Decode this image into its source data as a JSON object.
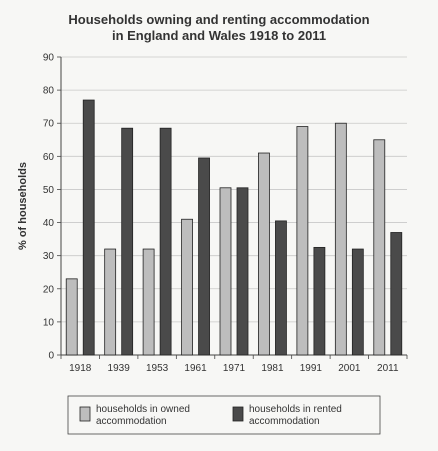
{
  "chart_data": {
    "type": "bar",
    "title_lines": [
      "Households owning and renting accommodation",
      "in England and Wales 1918 to 2011"
    ],
    "xlabel": "",
    "ylabel": "% of households",
    "ylim": [
      0,
      90
    ],
    "yticks": [
      0,
      10,
      20,
      30,
      40,
      50,
      60,
      70,
      80,
      90
    ],
    "grid": true,
    "categories": [
      "1918",
      "1939",
      "1953",
      "1961",
      "1971",
      "1981",
      "1991",
      "2001",
      "2011"
    ],
    "series": [
      {
        "name": "households in owned accommodation",
        "legend_lines": [
          "households in owned",
          "accommodation"
        ],
        "color": "#bdbdbd",
        "values": [
          23,
          32,
          32,
          41,
          50.5,
          61,
          69,
          70,
          65
        ]
      },
      {
        "name": "households in rented accommodation",
        "legend_lines": [
          "households in rented",
          "accommodation"
        ],
        "color": "#4a4a4a",
        "values": [
          77,
          68.5,
          68.5,
          59.5,
          50.5,
          40.5,
          32.5,
          32,
          37
        ]
      }
    ],
    "legend_position": "bottom"
  }
}
